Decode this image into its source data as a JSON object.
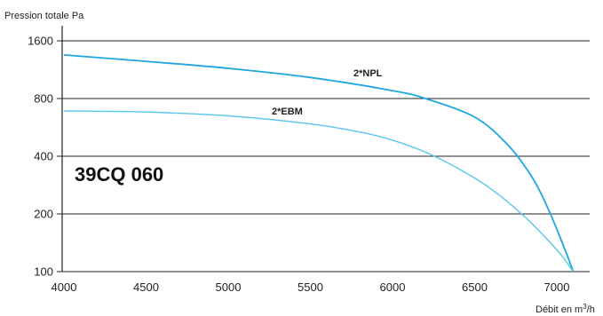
{
  "chart_data": {
    "type": "line",
    "ylabel": "Pression totale Pa",
    "xlabel_prefix": "Débit en m",
    "xlabel_sup": "3",
    "xlabel_suffix": "/h",
    "model_label": "39CQ 060",
    "x_ticks": [
      4000,
      4500,
      5000,
      5500,
      6000,
      6500,
      7000
    ],
    "y_ticks": [
      100,
      200,
      400,
      800,
      1600
    ],
    "y_scale": "log2",
    "xlim": [
      4000,
      7200
    ],
    "ylim": [
      100,
      1900
    ],
    "grid": "horizontal",
    "series": [
      {
        "name": "2*NPL",
        "color": "#1ea7df",
        "x": [
          4000,
          4500,
          5000,
          5500,
          6000,
          6200,
          6500,
          6700,
          6850,
          6950,
          7050,
          7100
        ],
        "y": [
          1350,
          1250,
          1150,
          1030,
          880,
          800,
          640,
          460,
          310,
          210,
          130,
          100
        ]
      },
      {
        "name": "2*EBM",
        "color": "#5cc5ee",
        "x": [
          4000,
          4500,
          5000,
          5500,
          5800,
          6000,
          6200,
          6400,
          6600,
          6800,
          7000,
          7100
        ],
        "y": [
          690,
          680,
          650,
          590,
          535,
          485,
          420,
          345,
          270,
          195,
          130,
          100
        ]
      }
    ]
  }
}
